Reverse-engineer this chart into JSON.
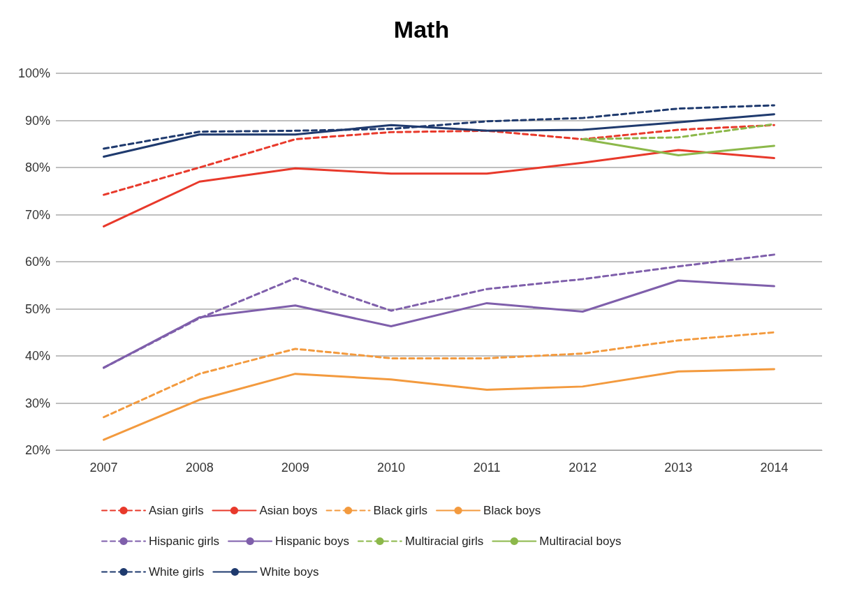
{
  "chart_data": {
    "type": "line",
    "title": "Math",
    "categories": [
      "2007",
      "2008",
      "2009",
      "2010",
      "2011",
      "2012",
      "2013",
      "2014"
    ],
    "ylim": [
      20,
      100
    ],
    "yticks": [
      {
        "value": 20,
        "label": "20%"
      },
      {
        "value": 30,
        "label": "30%"
      },
      {
        "value": 40,
        "label": "40%"
      },
      {
        "value": 50,
        "label": "50%"
      },
      {
        "value": 60,
        "label": "60%"
      },
      {
        "value": 70,
        "label": "70%"
      },
      {
        "value": 80,
        "label": "80%"
      },
      {
        "value": 90,
        "label": "90%"
      },
      {
        "value": 100,
        "label": "100%"
      }
    ],
    "grid": "y",
    "legend": "bottom",
    "marker": "none",
    "series": [
      {
        "name": "Asian girls",
        "color": "#e8392b",
        "line_style": "dashed",
        "values": [
          74.2,
          80,
          86,
          87.5,
          87.8,
          86,
          88,
          89
        ]
      },
      {
        "name": "Asian boys",
        "color": "#e8392b",
        "line_style": "solid",
        "values": [
          67.5,
          77,
          79.8,
          78.7,
          78.7,
          81,
          83.7,
          82
        ]
      },
      {
        "name": "Black girls",
        "color": "#f39a3e",
        "line_style": "dashed",
        "values": [
          27,
          36.2,
          41.5,
          39.5,
          39.5,
          40.5,
          43.3,
          45
        ]
      },
      {
        "name": "Black boys",
        "color": "#f39a3e",
        "line_style": "solid",
        "values": [
          22.2,
          30.7,
          36.2,
          35,
          32.8,
          33.5,
          36.7,
          37.2
        ]
      },
      {
        "name": "Hispanic girls",
        "color": "#7f5fab",
        "line_style": "dashed",
        "values": [
          37.5,
          48,
          56.5,
          49.6,
          54.2,
          56.3,
          59,
          61.5
        ]
      },
      {
        "name": "Hispanic boys",
        "color": "#7f5fab",
        "line_style": "solid",
        "values": [
          37.5,
          48.2,
          50.7,
          46.3,
          51.2,
          49.4,
          56,
          54.8
        ]
      },
      {
        "name": "Multiracial girls",
        "color": "#8cb84a",
        "line_style": "dashed",
        "values": [
          null,
          null,
          null,
          null,
          null,
          86,
          86.4,
          89.2
        ]
      },
      {
        "name": "Multiracial boys",
        "color": "#8cb84a",
        "line_style": "solid",
        "values": [
          null,
          null,
          null,
          null,
          null,
          86,
          82.6,
          84.6
        ]
      },
      {
        "name": "White girls",
        "color": "#1f3a6e",
        "line_style": "dashed",
        "values": [
          84,
          87.6,
          87.8,
          88.2,
          89.8,
          90.5,
          92.5,
          93.2
        ]
      },
      {
        "name": "White boys",
        "color": "#1f3a6e",
        "line_style": "solid",
        "values": [
          82.3,
          87,
          87,
          89,
          87.8,
          88,
          89.6,
          91.3
        ]
      }
    ]
  }
}
